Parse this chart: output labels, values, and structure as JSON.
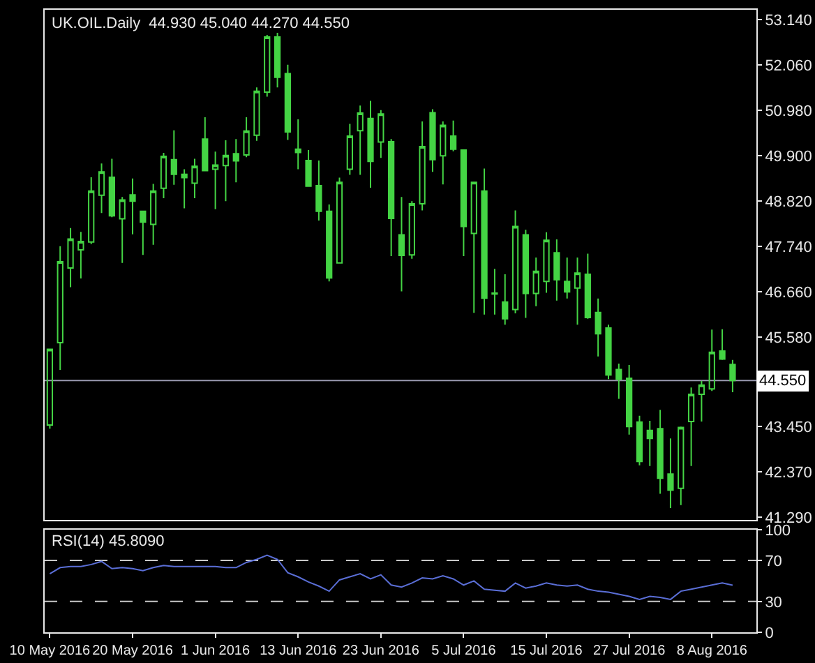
{
  "chart_data": [
    {
      "type": "candlestick",
      "title": "UK.OIL.Daily  44.930 45.040 44.270 44.550",
      "color": "#44d444",
      "ylim": [
        41.22,
        53.38
      ],
      "categories": [
        null,
        null,
        null,
        null,
        null,
        null,
        null,
        null,
        null,
        null,
        null,
        null,
        null,
        null,
        null,
        null,
        null,
        null,
        null,
        null,
        null,
        null,
        null,
        null,
        null,
        null,
        null,
        null,
        null,
        null,
        null,
        null,
        null,
        null,
        null,
        null,
        null,
        null,
        null,
        null,
        null,
        null,
        null,
        null,
        null,
        null,
        null,
        null,
        null,
        null,
        null,
        null,
        null,
        null,
        null,
        null,
        null,
        null,
        null,
        null,
        null,
        null,
        null,
        null,
        null,
        null,
        null
      ],
      "yticks": [
        {
          "value": 53.14,
          "label": "53.140"
        },
        {
          "value": 52.06,
          "label": "52.060"
        },
        {
          "value": 50.98,
          "label": "50.980"
        },
        {
          "value": 49.9,
          "label": "49.900"
        },
        {
          "value": 48.82,
          "label": "48.820"
        },
        {
          "value": 47.74,
          "label": "47.740"
        },
        {
          "value": 46.66,
          "label": "46.660"
        },
        {
          "value": 45.58,
          "label": "45.580"
        },
        {
          "value": 43.45,
          "label": "43.450"
        },
        {
          "value": 42.37,
          "label": "42.370"
        },
        {
          "value": 41.29,
          "label": "41.290"
        }
      ],
      "tick_labels": "y",
      "grid": false,
      "ref_lines": [
        {
          "axis": "y",
          "value": 44.55,
          "label": "44.550",
          "color": "#9a9ab0"
        }
      ],
      "ohlc": [
        [
          43.49,
          45.29,
          43.4,
          45.29
        ],
        [
          45.45,
          47.75,
          44.8,
          47.38
        ],
        [
          47.23,
          48.18,
          46.77,
          47.92
        ],
        [
          47.66,
          48.09,
          46.98,
          47.86
        ],
        [
          47.85,
          49.39,
          47.8,
          49.06
        ],
        [
          48.96,
          49.72,
          48.54,
          49.52
        ],
        [
          49.39,
          49.83,
          48.44,
          48.47
        ],
        [
          48.4,
          48.92,
          47.35,
          48.85
        ],
        [
          48.97,
          49.36,
          48.03,
          48.82
        ],
        [
          48.58,
          48.58,
          47.54,
          48.32
        ],
        [
          48.27,
          49.23,
          47.78,
          49.06
        ],
        [
          49.13,
          49.97,
          48.89,
          49.89
        ],
        [
          49.81,
          50.51,
          49.21,
          49.46
        ],
        [
          49.46,
          49.58,
          48.65,
          49.38
        ],
        [
          49.25,
          49.83,
          48.89,
          49.65
        ],
        [
          50.3,
          50.82,
          49.55,
          49.55
        ],
        [
          49.58,
          50.0,
          48.63,
          49.68
        ],
        [
          49.67,
          50.27,
          48.82,
          49.91
        ],
        [
          49.95,
          50.3,
          49.27,
          49.78
        ],
        [
          49.92,
          50.82,
          49.87,
          50.49
        ],
        [
          50.39,
          51.53,
          50.26,
          51.44
        ],
        [
          51.42,
          52.78,
          51.31,
          52.73
        ],
        [
          52.73,
          52.83,
          51.53,
          51.77
        ],
        [
          51.86,
          52.07,
          50.28,
          50.47
        ],
        [
          50.06,
          50.77,
          49.58,
          49.98
        ],
        [
          49.79,
          50.04,
          49.18,
          49.18
        ],
        [
          49.19,
          49.79,
          48.36,
          48.58
        ],
        [
          48.58,
          48.74,
          46.91,
          46.99
        ],
        [
          47.35,
          49.38,
          47.35,
          49.27
        ],
        [
          49.58,
          50.66,
          49.45,
          50.37
        ],
        [
          50.5,
          51.1,
          49.45,
          50.92
        ],
        [
          50.79,
          51.21,
          49.14,
          49.77
        ],
        [
          50.23,
          50.99,
          49.85,
          50.9
        ],
        [
          50.24,
          50.3,
          47.51,
          48.41
        ],
        [
          48.02,
          48.92,
          46.67,
          47.53
        ],
        [
          47.54,
          48.82,
          47.45,
          48.76
        ],
        [
          48.76,
          50.72,
          48.6,
          50.12
        ],
        [
          50.93,
          51.01,
          49.52,
          49.81
        ],
        [
          49.9,
          50.72,
          49.22,
          50.63
        ],
        [
          50.37,
          50.74,
          50.01,
          50.06
        ],
        [
          50.04,
          50.04,
          47.51,
          48.22
        ],
        [
          48.05,
          49.27,
          46.16,
          49.27
        ],
        [
          49.06,
          49.6,
          46.12,
          46.51
        ],
        [
          46.63,
          47.21,
          46.12,
          46.61
        ],
        [
          46.42,
          47.08,
          45.88,
          46.02
        ],
        [
          46.24,
          48.6,
          46.15,
          48.22
        ],
        [
          48.02,
          48.14,
          46.04,
          46.62
        ],
        [
          46.62,
          47.48,
          46.32,
          47.15
        ],
        [
          46.91,
          48.08,
          46.64,
          47.89
        ],
        [
          47.59,
          47.91,
          46.45,
          46.95
        ],
        [
          46.91,
          47.48,
          46.5,
          46.66
        ],
        [
          46.75,
          47.48,
          45.88,
          47.11
        ],
        [
          47.08,
          47.57,
          46.02,
          46.05
        ],
        [
          46.17,
          46.5,
          45.12,
          45.66
        ],
        [
          45.8,
          45.88,
          44.58,
          44.68
        ],
        [
          44.81,
          44.95,
          44.11,
          44.58
        ],
        [
          44.6,
          44.92,
          43.26,
          43.45
        ],
        [
          43.56,
          43.71,
          42.53,
          42.62
        ],
        [
          43.36,
          43.59,
          42.51,
          43.17
        ],
        [
          43.4,
          43.85,
          41.85,
          42.22
        ],
        [
          42.32,
          43.17,
          41.51,
          41.94
        ],
        [
          41.98,
          43.45,
          41.58,
          43.43
        ],
        [
          43.57,
          44.38,
          42.51,
          44.22
        ],
        [
          44.22,
          44.54,
          43.57,
          44.44
        ],
        [
          44.35,
          45.76,
          44.3,
          45.22
        ],
        [
          45.25,
          45.77,
          45.04,
          45.06
        ],
        [
          44.93,
          45.04,
          44.27,
          44.55
        ]
      ]
    },
    {
      "type": "line",
      "title": "RSI(14) 45.8090",
      "color": "#5a6ed6",
      "ylim": [
        0,
        100
      ],
      "yticks": [
        0,
        30,
        70,
        100
      ],
      "categories": [
        "10 May 2016",
        null,
        null,
        null,
        null,
        null,
        null,
        null,
        "20 May 2016",
        null,
        null,
        null,
        null,
        null,
        null,
        null,
        "1 Jun 2016",
        null,
        null,
        null,
        null,
        null,
        null,
        null,
        "13 Jun 2016",
        null,
        null,
        null,
        null,
        null,
        null,
        null,
        "23 Jun 2016",
        null,
        null,
        null,
        null,
        null,
        null,
        null,
        "5 Jul 2016",
        null,
        null,
        null,
        null,
        null,
        null,
        null,
        "15 Jul 2016",
        null,
        null,
        null,
        null,
        null,
        null,
        null,
        "27 Jul 2016",
        null,
        null,
        null,
        null,
        null,
        null,
        null,
        "8 Aug 2016",
        null,
        null
      ],
      "grid": false,
      "marker": "none",
      "line_style": "solid",
      "ref_lines": [
        {
          "axis": "y",
          "value": 70,
          "line_style": "dashed",
          "color": "#c8c8c8"
        },
        {
          "axis": "y",
          "value": 30,
          "line_style": "dashed",
          "color": "#c8c8c8"
        }
      ],
      "values": [
        57,
        63,
        64,
        64,
        66,
        69,
        62,
        63,
        62,
        60,
        63,
        65,
        64,
        64,
        64,
        64,
        64,
        63,
        63,
        68,
        71,
        75,
        71,
        58,
        54,
        49,
        45,
        40,
        51,
        54,
        57,
        52,
        56,
        46,
        44,
        48,
        53,
        52,
        55,
        52,
        46,
        50,
        42,
        41,
        40,
        48,
        43,
        45,
        48,
        46,
        45,
        46,
        42,
        40,
        39,
        37,
        35,
        32,
        35,
        34,
        32,
        40,
        42,
        44,
        46,
        48,
        45.8
      ]
    }
  ]
}
